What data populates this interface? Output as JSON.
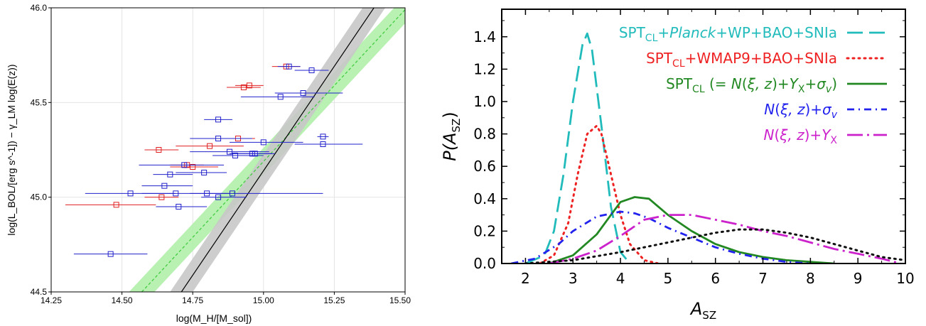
{
  "chart_data": [
    {
      "type": "scatter",
      "xlabel": "log(M_H/[M_sol])",
      "ylabel": "log(L_BOL/[erg s^-1]) − γ_LM log(E(z))",
      "xlim": [
        14.25,
        15.5
      ],
      "ylim": [
        44.5,
        46.0
      ],
      "x_ticks": [
        "14.25",
        "14.50",
        "14.75",
        "15.00",
        "15.25",
        "15.50"
      ],
      "y_ticks": [
        "44.5",
        "45.0",
        "45.5",
        "46.0"
      ],
      "grid": true,
      "colors": {
        "red": "#e02020",
        "blue": "#2222cc",
        "band_gray": "#c8c8c8",
        "band_green": "#b0f0a8",
        "line_green": "#44cc44"
      },
      "series": [
        {
          "color": "red",
          "points": [
            {
              "x": 14.48,
              "y": 44.96,
              "xerr": [
                0.18,
                0.14
              ]
            },
            {
              "x": 14.64,
              "y": 45.0,
              "xerr": [
                0.06,
                0.06
              ]
            },
            {
              "x": 14.63,
              "y": 45.25,
              "xerr": [
                0.05,
                0.07
              ]
            },
            {
              "x": 14.73,
              "y": 45.17,
              "xerr": [
                0.06,
                0.06
              ]
            },
            {
              "x": 14.75,
              "y": 45.16,
              "xerr": [
                0.08,
                0.09
              ]
            },
            {
              "x": 14.81,
              "y": 45.27,
              "xerr": [
                0.12,
                0.12
              ]
            },
            {
              "x": 14.91,
              "y": 45.31,
              "xerr": [
                0.05,
                0.06
              ]
            },
            {
              "x": 14.93,
              "y": 45.58,
              "xerr": [
                0.06,
                0.06
              ]
            },
            {
              "x": 14.95,
              "y": 45.59,
              "xerr": [
                0.05,
                0.05
              ]
            },
            {
              "x": 15.08,
              "y": 45.69,
              "xerr": [
                0.05,
                0.05
              ]
            }
          ]
        },
        {
          "color": "blue",
          "points": [
            {
              "x": 14.46,
              "y": 44.7,
              "xerr": [
                0.13,
                0.13
              ]
            },
            {
              "x": 14.53,
              "y": 45.02,
              "xerr": [
                0.16,
                0.16
              ]
            },
            {
              "x": 14.65,
              "y": 45.06,
              "xerr": [
                0.08,
                0.1
              ]
            },
            {
              "x": 14.67,
              "y": 45.12,
              "xerr": [
                0.06,
                0.08
              ]
            },
            {
              "x": 14.69,
              "y": 45.02,
              "xerr": [
                0.12,
                0.12
              ]
            },
            {
              "x": 14.7,
              "y": 44.95,
              "xerr": [
                0.08,
                0.1
              ]
            },
            {
              "x": 14.72,
              "y": 45.17,
              "xerr": [
                0.16,
                0.14
              ]
            },
            {
              "x": 14.79,
              "y": 45.13,
              "xerr": [
                0.1,
                0.08
              ]
            },
            {
              "x": 14.8,
              "y": 45.02,
              "xerr": [
                0.06,
                0.08
              ]
            },
            {
              "x": 14.84,
              "y": 45.41,
              "xerr": [
                0.05,
                0.05
              ]
            },
            {
              "x": 14.84,
              "y": 45.31,
              "xerr": [
                0.1,
                0.12
              ]
            },
            {
              "x": 14.84,
              "y": 45.0,
              "xerr": [
                0.06,
                0.1
              ]
            },
            {
              "x": 14.88,
              "y": 45.24,
              "xerr": [
                0.14,
                0.14
              ]
            },
            {
              "x": 14.89,
              "y": 45.02,
              "xerr": [
                0.1,
                0.32
              ]
            },
            {
              "x": 14.9,
              "y": 45.22,
              "xerr": [
                0.08,
                0.1
              ]
            },
            {
              "x": 14.96,
              "y": 45.23,
              "xerr": [
                0.08,
                0.08
              ]
            },
            {
              "x": 14.97,
              "y": 45.23,
              "xerr": [
                0.06,
                0.06
              ]
            },
            {
              "x": 15.0,
              "y": 45.29,
              "xerr": [
                0.12,
                0.14
              ]
            },
            {
              "x": 15.06,
              "y": 45.53,
              "xerr": [
                0.14,
                0.12
              ]
            },
            {
              "x": 15.09,
              "y": 45.69,
              "xerr": [
                0.04,
                0.04
              ]
            },
            {
              "x": 15.14,
              "y": 45.55,
              "xerr": [
                0.1,
                0.14
              ]
            },
            {
              "x": 15.17,
              "y": 45.67,
              "xerr": [
                0.06,
                0.06
              ]
            },
            {
              "x": 15.21,
              "y": 45.32,
              "xerr": [
                0.02,
                0.02
              ]
            },
            {
              "x": 15.21,
              "y": 45.28,
              "xerr": [
                0.1,
                0.14
              ]
            }
          ]
        }
      ],
      "fit_black": {
        "x0": 14.71,
        "y0": 44.5,
        "x1": 15.39,
        "y1": 46.0,
        "band_halfwidth_x": 0.04
      },
      "fit_green_dashed": {
        "x0": 14.57,
        "y0": 44.5,
        "x1": 15.5,
        "y1": 45.99,
        "band_halfwidth_x": 0.045
      }
    },
    {
      "type": "line",
      "xlabel_main": "A",
      "xlabel_sub": "SZ",
      "ylabel_main": "P(A",
      "ylabel_sub": "SZ",
      "ylabel_end": ")",
      "xlim": [
        1.5,
        10
      ],
      "ylim": [
        0,
        1.57
      ],
      "x_ticks": [
        "2",
        "3",
        "4",
        "5",
        "6",
        "7",
        "8",
        "9",
        "10"
      ],
      "y_ticks": [
        "0.0",
        "0.2",
        "0.4",
        "0.6",
        "0.8",
        "1.0",
        "1.2",
        "1.4"
      ],
      "legend": [
        {
          "color": "#22bbbb",
          "style": "dash-long",
          "parts": [
            {
              "t": "SPT"
            },
            {
              "t": "CL",
              "sub": true
            },
            {
              "t": "+"
            },
            {
              "t": "Planck",
              "it": true
            },
            {
              "t": "+WP+BAO+SNIa"
            }
          ]
        },
        {
          "color": "#ee2222",
          "style": "dot",
          "parts": [
            {
              "t": "SPT"
            },
            {
              "t": "CL",
              "sub": true
            },
            {
              "t": "+WMAP9+BAO+SNIa"
            }
          ]
        },
        {
          "color": "#228822",
          "style": "solid",
          "parts": [
            {
              "t": "SPT"
            },
            {
              "t": "CL",
              "sub": true
            },
            {
              "t": " (= "
            },
            {
              "t": "N",
              "it": true
            },
            {
              "t": "("
            },
            {
              "t": "ξ, z",
              "it": true
            },
            {
              "t": ")+"
            },
            {
              "t": "Y",
              "it": true
            },
            {
              "t": "X",
              "sub": true
            },
            {
              "t": "+"
            },
            {
              "t": "σ",
              "it": true
            },
            {
              "t": "v",
              "sub": true,
              "it": true
            },
            {
              "t": ")"
            }
          ]
        },
        {
          "color": "#2222ee",
          "style": "dashdot",
          "parts": [
            {
              "t": "N",
              "it": true
            },
            {
              "t": "("
            },
            {
              "t": "ξ, z",
              "it": true
            },
            {
              "t": ")+"
            },
            {
              "t": "σ",
              "it": true
            },
            {
              "t": "v",
              "sub": true,
              "it": true
            }
          ]
        },
        {
          "color": "#cc22cc",
          "style": "dash-dot-long",
          "parts": [
            {
              "t": "N",
              "it": true
            },
            {
              "t": "("
            },
            {
              "t": "ξ, z",
              "it": true
            },
            {
              "t": ")+"
            },
            {
              "t": "Y",
              "it": true
            },
            {
              "t": "X",
              "sub": true
            }
          ]
        }
      ],
      "series": [
        {
          "color": "#22bbbb",
          "style": "dash-long",
          "x": [
            2.0,
            2.4,
            2.6,
            2.8,
            3.0,
            3.2,
            3.3,
            3.4,
            3.6,
            3.8,
            4.0,
            4.2
          ],
          "y": [
            0.0,
            0.05,
            0.2,
            0.55,
            1.0,
            1.35,
            1.42,
            1.32,
            0.85,
            0.35,
            0.07,
            0.0
          ]
        },
        {
          "color": "#ee2222",
          "style": "dot",
          "x": [
            2.3,
            2.6,
            2.9,
            3.1,
            3.3,
            3.5,
            3.6,
            3.8,
            4.0,
            4.2,
            4.5,
            4.8
          ],
          "y": [
            0.0,
            0.05,
            0.25,
            0.55,
            0.8,
            0.85,
            0.8,
            0.55,
            0.3,
            0.12,
            0.02,
            0.0
          ]
        },
        {
          "color": "#228822",
          "style": "solid",
          "x": [
            2.5,
            3.0,
            3.5,
            3.8,
            4.0,
            4.3,
            4.6,
            5.0,
            5.5,
            6.0,
            6.5,
            7.0,
            7.5,
            8.0,
            8.5
          ],
          "y": [
            0.0,
            0.05,
            0.18,
            0.3,
            0.38,
            0.41,
            0.4,
            0.3,
            0.2,
            0.12,
            0.07,
            0.04,
            0.02,
            0.01,
            0.0
          ]
        },
        {
          "color": "#2222ee",
          "style": "dashdot",
          "x": [
            1.7,
            2.2,
            2.7,
            3.0,
            3.5,
            4.0,
            4.3,
            4.6,
            5.0,
            5.5,
            6.0,
            6.5,
            7.0,
            7.5,
            8.0
          ],
          "y": [
            0.0,
            0.03,
            0.12,
            0.2,
            0.29,
            0.32,
            0.31,
            0.28,
            0.22,
            0.16,
            0.1,
            0.06,
            0.03,
            0.01,
            0.0
          ]
        },
        {
          "color": "#cc22cc",
          "style": "dash-dot-long",
          "x": [
            2.5,
            3.0,
            3.5,
            4.0,
            4.5,
            5.0,
            5.5,
            6.0,
            6.5,
            7.0,
            7.5,
            8.0,
            8.5,
            9.0,
            9.5,
            9.9
          ],
          "y": [
            0.0,
            0.03,
            0.08,
            0.17,
            0.27,
            0.3,
            0.3,
            0.27,
            0.24,
            0.2,
            0.17,
            0.13,
            0.09,
            0.06,
            0.03,
            0.0
          ]
        },
        {
          "color": "#111111",
          "style": "dot",
          "x": [
            2.0,
            3.0,
            4.0,
            5.0,
            6.0,
            6.5,
            7.0,
            7.5,
            8.0,
            8.5,
            9.0,
            9.5,
            10.0
          ],
          "y": [
            0.0,
            0.02,
            0.07,
            0.13,
            0.19,
            0.21,
            0.21,
            0.19,
            0.16,
            0.12,
            0.08,
            0.04,
            0.02
          ]
        }
      ]
    }
  ]
}
